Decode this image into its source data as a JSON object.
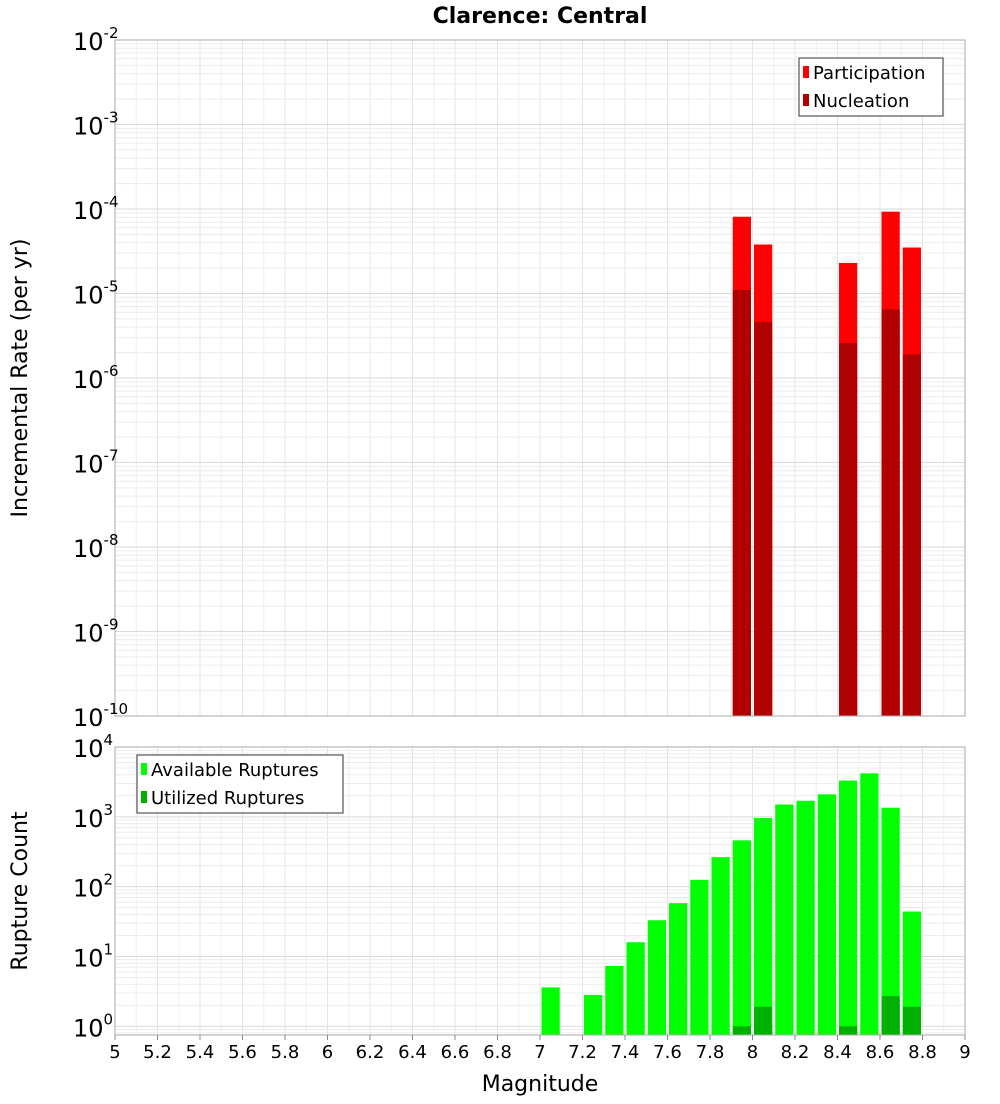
{
  "chart_data": [
    {
      "type": "bar",
      "title": "Clarence: Central",
      "ylabel": "Incremental Rate (per yr)",
      "yscale": "log",
      "ylim": [
        1e-10,
        0.01
      ],
      "y_ticks": [
        {
          "base": "10",
          "exp": "-2"
        },
        {
          "base": "10",
          "exp": "-3"
        },
        {
          "base": "10",
          "exp": "-4"
        },
        {
          "base": "10",
          "exp": "-5"
        },
        {
          "base": "10",
          "exp": "-6"
        },
        {
          "base": "10",
          "exp": "-7"
        },
        {
          "base": "10",
          "exp": "-8"
        },
        {
          "base": "10",
          "exp": "-9"
        },
        {
          "base": "10",
          "exp": "-10"
        }
      ],
      "xlim": [
        5,
        9
      ],
      "grid": true,
      "legend_position": "top-right",
      "series": [
        {
          "name": "Participation",
          "color": "#ff0000",
          "x": [
            7.95,
            8.05,
            8.45,
            8.65,
            8.75
          ],
          "values": [
            8.1e-05,
            3.8e-05,
            2.3e-05,
            9.3e-05,
            3.5e-05
          ]
        },
        {
          "name": "Nucleation",
          "color": "#b00000",
          "x": [
            7.95,
            8.05,
            8.45,
            8.65,
            8.75
          ],
          "values": [
            1.1e-05,
            4.6e-06,
            2.6e-06,
            6.5e-06,
            1.9e-06
          ]
        }
      ]
    },
    {
      "type": "bar",
      "ylabel": "Rupture Count",
      "xlabel": "Magnitude",
      "yscale": "log",
      "ylim": [
        0.75,
        10000
      ],
      "y_ticks": [
        {
          "base": "10",
          "exp": "4"
        },
        {
          "base": "10",
          "exp": "3"
        },
        {
          "base": "10",
          "exp": "2"
        },
        {
          "base": "10",
          "exp": "1"
        },
        {
          "base": "10",
          "exp": "0"
        }
      ],
      "xlim": [
        5,
        9
      ],
      "x_ticks": [
        "5",
        "5.2",
        "5.4",
        "5.6",
        "5.8",
        "6",
        "6.2",
        "6.4",
        "6.6",
        "6.8",
        "7",
        "7.2",
        "7.4",
        "7.6",
        "7.8",
        "8",
        "8.2",
        "8.4",
        "8.6",
        "8.8",
        "9"
      ],
      "grid": true,
      "legend_position": "top-left",
      "series": [
        {
          "name": "Available Ruptures",
          "color": "#00ff00",
          "x": [
            7.05,
            7.25,
            7.35,
            7.45,
            7.55,
            7.65,
            7.75,
            7.85,
            7.95,
            8.05,
            8.15,
            8.25,
            8.35,
            8.45,
            8.55,
            8.65,
            8.75
          ],
          "values": [
            3.6,
            2.8,
            7.3,
            16,
            33,
            58,
            125,
            265,
            460,
            960,
            1500,
            1700,
            2100,
            3300,
            4200,
            1350,
            44
          ]
        },
        {
          "name": "Utilized Ruptures",
          "color": "#00b000",
          "x": [
            7.95,
            8.05,
            8.45,
            8.65,
            8.75
          ],
          "values": [
            1,
            1.9,
            1,
            2.7,
            1.9
          ]
        }
      ]
    }
  ]
}
